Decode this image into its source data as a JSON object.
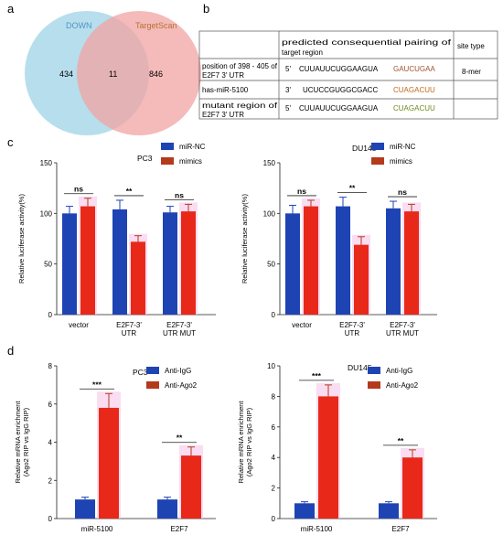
{
  "panel_letters": {
    "a": "a",
    "b": "b",
    "c": "c",
    "d": "d"
  },
  "colors": {
    "venn_left": "#9fd3e6",
    "venn_right": "#f2a3a3",
    "venn_left_label": "#4f94c9",
    "venn_right_label": "#b8732f",
    "bar_blue": "#1e44b4",
    "bar_red": "#e8291a",
    "bar_red_legend": "#b33a1b",
    "seed_brown": "#a0522d",
    "seed_orange": "#c06a1d",
    "seed_green": "#6a8a1c"
  },
  "venn": {
    "left_label": "DOWN",
    "right_label": "TargetScan",
    "left_only": "434",
    "intersection": "11",
    "right_only": "846"
  },
  "table": {
    "header": [
      "",
      "predicted consequential pairing of target region",
      "site type"
    ],
    "rows": [
      {
        "label": "position of 398 - 405 of E2F7 3' UTR",
        "prime": "5'",
        "seq": "CUUAUUCUGGAAGUA",
        "seed": "GAUCUGAA",
        "site": "8-mer"
      },
      {
        "label": "has-miR-5100",
        "prime": "3'",
        "seq": "UCUCCGUGGCGACC",
        "seed": "CUAGACUU",
        "site": ""
      },
      {
        "label": "mutant region of E2F7 3' UTR",
        "prime": "5'",
        "seq": "CUUAUUCUGGAAGUA",
        "seed": "CUAGACUU",
        "site": ""
      }
    ]
  },
  "chart_data": [
    {
      "panel": "c",
      "type": "bar",
      "title": "PC3",
      "ylabel": "Relative luciferase activity(%)",
      "ylim": [
        0,
        150
      ],
      "yticks": [
        0,
        50,
        100,
        150
      ],
      "categories": [
        "vector",
        "E2F7-3' UTR",
        "E2F7-3' UTR MUT"
      ],
      "category_lines": [
        [
          "vector"
        ],
        [
          "E2F7-3'",
          "UTR"
        ],
        [
          "E2F7-3'",
          "UTR MUT"
        ]
      ],
      "series": [
        {
          "name": "miR-NC",
          "values": [
            100,
            104,
            101
          ],
          "errors": [
            7,
            9,
            6
          ]
        },
        {
          "name": "mimics",
          "values": [
            107,
            72,
            102
          ],
          "errors": [
            8,
            6,
            7
          ]
        }
      ],
      "significance": [
        "ns",
        "**",
        "ns"
      ],
      "legend": "top-right"
    },
    {
      "panel": "c",
      "type": "bar",
      "title": "DU145",
      "ylabel": "Relative luciferase activity(%)",
      "ylim": [
        0,
        150
      ],
      "yticks": [
        0,
        50,
        100,
        150
      ],
      "categories": [
        "vector",
        "E2F7-3' UTR",
        "E2F7-3' UTR MUT"
      ],
      "category_lines": [
        [
          "vector"
        ],
        [
          "E2F7-3'",
          "UTR"
        ],
        [
          "E2F7-3'",
          "UTR MUT"
        ]
      ],
      "series": [
        {
          "name": "miR-NC",
          "values": [
            100,
            107,
            105
          ],
          "errors": [
            8,
            9,
            7
          ]
        },
        {
          "name": "mimics",
          "values": [
            107,
            69,
            102
          ],
          "errors": [
            6,
            8,
            7
          ]
        }
      ],
      "significance": [
        "ns",
        "**",
        "ns"
      ],
      "legend": "top-right"
    },
    {
      "panel": "d",
      "type": "bar",
      "title": "PC3",
      "ylabel": "Relative mRNA enrichment (Ago2 RIP vs IgG RIP)",
      "ylabel_lines": [
        "Relative mRNA enrichment",
        "(Ago2 RIP vs IgG RIP)"
      ],
      "ylim": [
        0,
        8
      ],
      "yticks": [
        0,
        2,
        4,
        6,
        8
      ],
      "categories": [
        "miR-5100",
        "E2F7"
      ],
      "category_lines": [
        [
          "miR-5100"
        ],
        [
          "E2F7"
        ]
      ],
      "series": [
        {
          "name": "Anti-IgG",
          "values": [
            1.0,
            1.0
          ],
          "errors": [
            0.12,
            0.12
          ]
        },
        {
          "name": "Anti-Ago2",
          "values": [
            5.8,
            3.3
          ],
          "errors": [
            0.75,
            0.45
          ]
        }
      ],
      "significance": [
        "***",
        "**"
      ],
      "legend": "top-right"
    },
    {
      "panel": "d",
      "type": "bar",
      "title": "DU145",
      "ylabel": "Relative mRNA enrichment (Ago2 RIP vs IgG RIP)",
      "ylabel_lines": [
        "Relative mRNA enrichment",
        "(Ago2 RIP vs IgG RIP)"
      ],
      "ylim": [
        0,
        10
      ],
      "yticks": [
        0,
        2,
        4,
        6,
        8,
        10
      ],
      "categories": [
        "miR-5100",
        "E2F7"
      ],
      "category_lines": [
        [
          "miR-5100"
        ],
        [
          "E2F7"
        ]
      ],
      "series": [
        {
          "name": "Anti-IgG",
          "values": [
            1.0,
            1.0
          ],
          "errors": [
            0.1,
            0.1
          ]
        },
        {
          "name": "Anti-Ago2",
          "values": [
            8.0,
            4.0
          ],
          "errors": [
            0.75,
            0.5
          ]
        }
      ],
      "significance": [
        "***",
        "**"
      ],
      "legend": "top-right"
    }
  ]
}
